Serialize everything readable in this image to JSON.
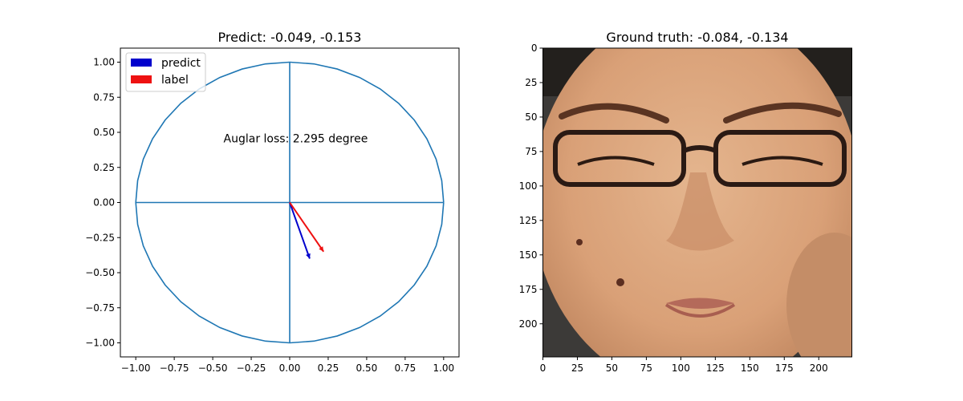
{
  "chart_data": [
    {
      "type": "line",
      "title": "Predict: -0.049, -0.153",
      "xlim": [
        -1.1,
        1.1
      ],
      "ylim": [
        -1.1,
        1.1
      ],
      "x_ticks": [
        -1.0,
        -0.75,
        -0.5,
        -0.25,
        0.0,
        0.25,
        0.5,
        0.75,
        1.0
      ],
      "x_tick_labels": [
        "−1.00",
        "−0.75",
        "−0.50",
        "−0.25",
        "0.00",
        "0.25",
        "0.50",
        "0.75",
        "1.00"
      ],
      "y_ticks": [
        1.0,
        0.75,
        0.5,
        0.25,
        0.0,
        -0.25,
        -0.5,
        -0.75,
        -1.0
      ],
      "y_tick_labels": [
        "1.00",
        "0.75",
        "0.50",
        "0.25",
        "0.00",
        "−0.25",
        "−0.50",
        "−0.75",
        "−1.00"
      ],
      "circle": {
        "radius": 1.0,
        "color": "#1f77b4"
      },
      "axis_lines": [
        {
          "x": [
            -1.0,
            1.0
          ],
          "y": [
            0.0,
            0.0
          ]
        },
        {
          "x": [
            0.0,
            0.0
          ],
          "y": [
            -1.0,
            1.0
          ]
        }
      ],
      "series": [
        {
          "name": "predict",
          "color": "#0000cc",
          "x": [
            0.0,
            0.13
          ],
          "y": [
            0.0,
            -0.4
          ]
        },
        {
          "name": "label",
          "color": "#ee1111",
          "x": [
            0.0,
            0.22
          ],
          "y": [
            0.0,
            -0.35
          ]
        }
      ],
      "legend": {
        "placement": "top-left",
        "entries": [
          "predict",
          "label"
        ]
      },
      "annotation": {
        "text": "Auglar loss: 2.295 degree",
        "x": -0.43,
        "y": 0.43
      },
      "grid": false
    },
    {
      "type": "image",
      "title": "Ground truth: -0.084, -0.134",
      "xlim": [
        0,
        224
      ],
      "ylim": [
        224,
        0
      ],
      "x_ticks": [
        0,
        25,
        50,
        75,
        100,
        125,
        150,
        175,
        200
      ],
      "x_tick_labels": [
        "0",
        "25",
        "50",
        "75",
        "100",
        "125",
        "150",
        "175",
        "200"
      ],
      "y_ticks": [
        0,
        25,
        50,
        75,
        100,
        125,
        150,
        175,
        200
      ],
      "y_tick_labels": [
        "0",
        "25",
        "50",
        "75",
        "100",
        "125",
        "150",
        "175",
        "200"
      ],
      "image_subject": "close-up face photo with glasses",
      "grid": false
    }
  ]
}
